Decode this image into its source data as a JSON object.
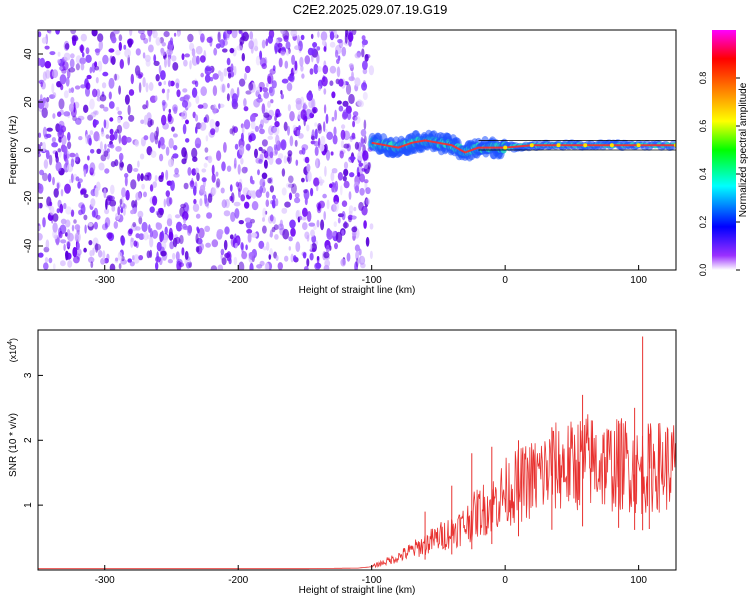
{
  "title": "C2E2.2025.029.07.19.G19",
  "chart_data": [
    {
      "type": "heatmap",
      "xlabel": "Height of straight line (km)",
      "ylabel": "Frequency (Hz)",
      "xlim": [
        -350,
        128
      ],
      "ylim": [
        -50,
        50
      ],
      "x_ticks": [
        -300,
        -200,
        -100,
        0,
        100
      ],
      "y_ticks": [
        -40,
        -20,
        0,
        20,
        40
      ],
      "noise_region_x": [
        -350,
        -100
      ],
      "signal_track": [
        {
          "x": -100,
          "y": 3
        },
        {
          "x": -90,
          "y": 2
        },
        {
          "x": -80,
          "y": 1
        },
        {
          "x": -70,
          "y": 3
        },
        {
          "x": -60,
          "y": 4
        },
        {
          "x": -50,
          "y": 3
        },
        {
          "x": -40,
          "y": 2
        },
        {
          "x": -30,
          "y": -1
        },
        {
          "x": -20,
          "y": 1
        },
        {
          "x": -10,
          "y": 1
        },
        {
          "x": 0,
          "y": 1
        },
        {
          "x": 20,
          "y": 2
        },
        {
          "x": 40,
          "y": 2
        },
        {
          "x": 60,
          "y": 2
        },
        {
          "x": 80,
          "y": 2
        },
        {
          "x": 100,
          "y": 2
        },
        {
          "x": 128,
          "y": 2
        }
      ],
      "colorbar": {
        "label": "Normalized spectral amplitude",
        "range": [
          0,
          1
        ],
        "ticks": [
          0.0,
          0.2,
          0.4,
          0.6,
          0.8
        ],
        "colors": [
          "#ffffff",
          "#7a00ff",
          "#0000ff",
          "#00ffff",
          "#00ff00",
          "#ffff00",
          "#ff8000",
          "#ff0000",
          "#ff00ff"
        ]
      },
      "horizontal_lines_y": [
        0,
        4
      ]
    },
    {
      "type": "line",
      "xlabel": "Height of straight line (km)",
      "ylabel": "SNR (10 * v/v)",
      "scale_label": "(x10",
      "scale_exponent": "4",
      "scale_close": ")",
      "xlim": [
        -350,
        128
      ],
      "ylim": [
        0,
        3.7
      ],
      "x_ticks": [
        -300,
        -200,
        -100,
        0,
        100
      ],
      "y_ticks": [
        1,
        2,
        3
      ],
      "color": "#e8312f",
      "series": [
        {
          "x": [
            -350,
            -300,
            -250,
            -200,
            -150,
            -110,
            -100,
            -80,
            -70,
            -60,
            -50,
            -40,
            -30,
            -20,
            -10,
            0,
            10,
            20,
            30,
            40,
            50,
            60,
            70,
            80,
            90,
            100,
            110,
            120,
            128
          ],
          "y": [
            0.02,
            0.02,
            0.02,
            0.02,
            0.02,
            0.03,
            0.05,
            0.2,
            0.3,
            0.4,
            0.5,
            0.6,
            0.7,
            0.9,
            1.0,
            1.2,
            1.3,
            1.4,
            1.5,
            1.6,
            1.6,
            1.7,
            1.65,
            1.6,
            1.65,
            1.5,
            1.6,
            1.6,
            1.6
          ]
        }
      ],
      "spikes": [
        {
          "x": -60,
          "y": 0.9
        },
        {
          "x": -40,
          "y": 1.3
        },
        {
          "x": -25,
          "y": 1.8
        },
        {
          "x": -10,
          "y": 1.9
        },
        {
          "x": 10,
          "y": 2.0
        },
        {
          "x": 35,
          "y": 2.2
        },
        {
          "x": 58,
          "y": 2.7
        },
        {
          "x": 85,
          "y": 2.3
        },
        {
          "x": 97,
          "y": 2.5
        },
        {
          "x": 103,
          "y": 3.6
        },
        {
          "x": 108,
          "y": 2.1
        }
      ]
    }
  ]
}
